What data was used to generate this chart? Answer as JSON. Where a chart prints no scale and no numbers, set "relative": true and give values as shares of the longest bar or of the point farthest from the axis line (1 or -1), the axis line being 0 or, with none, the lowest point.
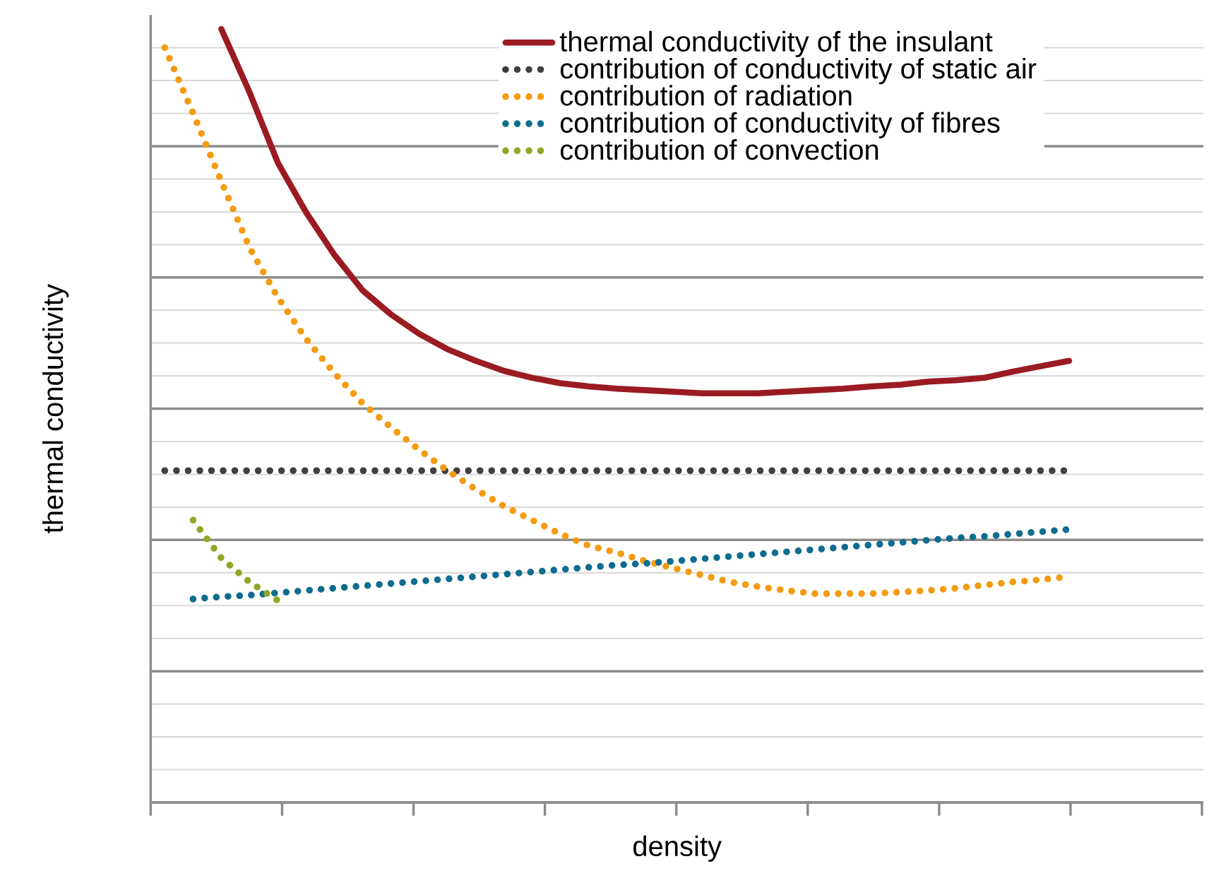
{
  "chart_data": {
    "type": "line",
    "relative": true,
    "xlabel": "density",
    "ylabel": "thermal conductivity",
    "grid": "y",
    "legend": "top right",
    "categories": [
      null,
      null,
      null,
      null,
      null,
      null,
      null,
      null,
      null,
      null,
      null,
      null,
      null,
      null,
      null,
      null,
      null,
      null,
      null,
      null,
      null,
      null,
      null,
      null,
      null,
      null,
      null,
      null,
      null,
      null,
      null,
      null,
      null
    ],
    "series": [
      {
        "name": "thermal conductivity of the insulant",
        "color": "#9b1b22",
        "line_style": "solid",
        "values": [
          null,
          null,
          1.0,
          0.918,
          0.827,
          0.763,
          0.708,
          0.662,
          0.631,
          0.606,
          0.586,
          0.571,
          0.558,
          0.549,
          0.542,
          0.538,
          0.535,
          0.533,
          0.531,
          0.529,
          0.529,
          0.529,
          0.531,
          0.533,
          0.535,
          0.538,
          0.54,
          0.544,
          0.546,
          0.549,
          0.557,
          0.564,
          0.571
        ]
      },
      {
        "name": "contribution of conductivity of static air",
        "color": "#404040",
        "line_style": "dotted",
        "values": [
          0.429,
          0.429,
          0.429,
          0.429,
          0.429,
          0.429,
          0.429,
          0.429,
          0.429,
          0.429,
          0.429,
          0.429,
          0.429,
          0.429,
          0.429,
          0.429,
          0.429,
          0.429,
          0.429,
          0.429,
          0.429,
          0.429,
          0.429,
          0.429,
          0.429,
          0.429,
          0.429,
          0.429,
          0.429,
          0.429,
          0.429,
          0.429,
          0.429
        ]
      },
      {
        "name": "contribution of radiation",
        "color": "#f39c12",
        "line_style": "dotted",
        "values": [
          0.976,
          0.891,
          0.803,
          0.717,
          0.653,
          0.599,
          0.555,
          0.516,
          0.485,
          0.456,
          0.429,
          0.405,
          0.383,
          0.365,
          0.347,
          0.332,
          0.323,
          0.312,
          0.303,
          0.294,
          0.285,
          0.279,
          0.274,
          0.27,
          0.27,
          0.27,
          0.272,
          0.274,
          0.277,
          0.281,
          0.285,
          0.288,
          0.292
        ]
      },
      {
        "name": "contribution of conductivity of fibres",
        "color": "#0e6d8f",
        "line_style": "dotted",
        "values": [
          null,
          0.263,
          0.266,
          0.268,
          0.271,
          0.274,
          0.277,
          0.28,
          0.283,
          0.286,
          0.289,
          0.292,
          0.295,
          0.298,
          0.301,
          0.304,
          0.307,
          0.309,
          0.312,
          0.315,
          0.318,
          0.321,
          0.324,
          0.327,
          0.33,
          0.333,
          0.336,
          0.339,
          0.342,
          0.344,
          0.347,
          0.35,
          0.353
        ]
      },
      {
        "name": "contribution of convection",
        "color": "#8ea825",
        "line_style": "dotted",
        "values": [
          null,
          0.365,
          0.316,
          0.285,
          0.261,
          null,
          null,
          null,
          null,
          null,
          null,
          null,
          null,
          null,
          null,
          null,
          null,
          null,
          null,
          null,
          null,
          null,
          null,
          null,
          null,
          null,
          null,
          null,
          null,
          null,
          null,
          null,
          null
        ]
      }
    ]
  }
}
